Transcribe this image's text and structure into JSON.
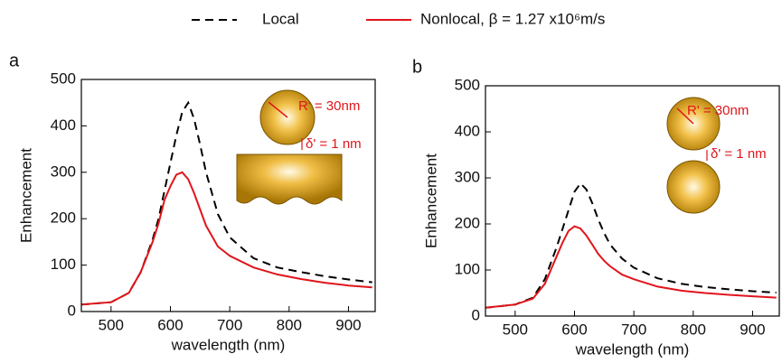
{
  "chart_data": [
    {
      "type": "line",
      "panel_label": "a",
      "x_label": "wavelength (nm)",
      "y_label": "Enhancement",
      "xlim": [
        450,
        945
      ],
      "xticks": [
        500,
        600,
        700,
        800,
        900
      ],
      "ylim": [
        0,
        500
      ],
      "yticks": [
        0,
        100,
        200,
        300,
        400,
        500
      ],
      "annotations": [
        "R' = 30nm",
        "δ' = 1 nm"
      ],
      "x": [
        450,
        500,
        530,
        550,
        570,
        580,
        590,
        600,
        610,
        620,
        630,
        640,
        650,
        660,
        680,
        700,
        740,
        780,
        820,
        860,
        900,
        940
      ],
      "series": [
        {
          "name": "Local",
          "color": "#000000",
          "style": "dashed",
          "values": [
            15,
            20,
            40,
            85,
            155,
            200,
            260,
            320,
            380,
            430,
            450,
            415,
            360,
            300,
            210,
            160,
            115,
            95,
            85,
            76,
            69,
            63
          ]
        },
        {
          "name": "Nonlocal, β = 1.27 x10⁶m/s",
          "color": "#e0151b",
          "style": "solid",
          "values": [
            15,
            20,
            40,
            85,
            150,
            190,
            240,
            270,
            295,
            300,
            285,
            255,
            220,
            185,
            140,
            120,
            95,
            80,
            70,
            62,
            56,
            52
          ]
        }
      ]
    },
    {
      "type": "line",
      "panel_label": "b",
      "x_label": "wavelength (nm)",
      "y_label": "Enhancement",
      "xlim": [
        450,
        945
      ],
      "xticks": [
        500,
        600,
        700,
        800,
        900
      ],
      "ylim": [
        0,
        500
      ],
      "yticks": [
        0,
        100,
        200,
        300,
        400,
        500
      ],
      "annotations": [
        "R' = 30nm",
        "δ' = 1 nm"
      ],
      "x": [
        450,
        500,
        530,
        550,
        570,
        580,
        590,
        600,
        610,
        620,
        630,
        640,
        650,
        660,
        680,
        700,
        740,
        780,
        820,
        860,
        900,
        940
      ],
      "series": [
        {
          "color": "#000000",
          "style": "dashed",
          "values": [
            18,
            25,
            40,
            80,
            150,
            190,
            230,
            270,
            288,
            275,
            245,
            210,
            180,
            155,
            125,
            105,
            82,
            70,
            63,
            58,
            54,
            51
          ]
        },
        {
          "color": "#e0151b",
          "style": "solid",
          "values": [
            18,
            25,
            38,
            70,
            130,
            160,
            185,
            195,
            190,
            175,
            155,
            135,
            120,
            108,
            90,
            80,
            64,
            55,
            50,
            46,
            43,
            40
          ]
        }
      ]
    }
  ]
}
